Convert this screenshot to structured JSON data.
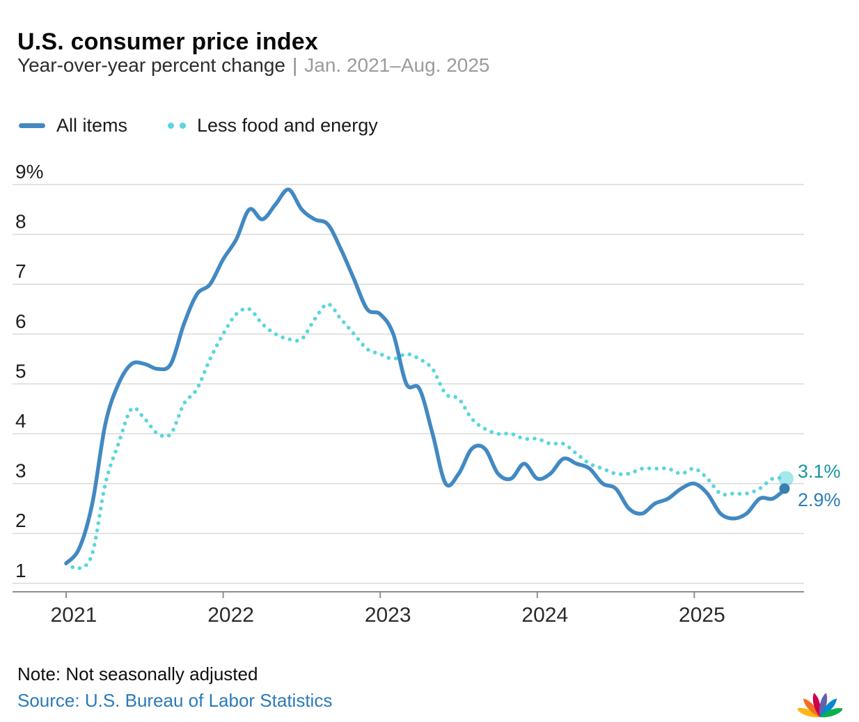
{
  "header": {
    "title": "U.S. consumer price index",
    "subtitle": "Year-over-year percent change",
    "divider": "|",
    "date_range": "Jan. 2021–Aug. 2025"
  },
  "legend": [
    {
      "label": "All items",
      "color": "#4289c2",
      "style": "solid"
    },
    {
      "label": "Less food and energy",
      "color": "#5ad6dc",
      "style": "dotted"
    }
  ],
  "chart_data": {
    "type": "line",
    "title": "U.S. consumer price index",
    "ylabel": "Year-over-year percent change (%)",
    "x_interval": "month",
    "x_start": "2021-01",
    "x_end": "2025-08",
    "x_tick_labels": [
      "2021",
      "2022",
      "2023",
      "2024",
      "2025"
    ],
    "y_ticks": [
      "9%",
      "8",
      "7",
      "6",
      "5",
      "4",
      "3",
      "2",
      "1"
    ],
    "ylim": [
      1,
      9
    ],
    "grid": true,
    "legend_position": "top-left",
    "series": [
      {
        "name": "All items",
        "color": "#4289c2",
        "style": "solid",
        "end_label": "2.9%",
        "end_label_color": "#2d7cb5",
        "end_dot_color": "#3a7fb0",
        "values": [
          1.4,
          1.7,
          2.6,
          4.2,
          5.0,
          5.4,
          5.4,
          5.3,
          5.4,
          6.2,
          6.8,
          7.0,
          7.5,
          7.9,
          8.5,
          8.3,
          8.6,
          8.9,
          8.5,
          8.3,
          8.2,
          7.7,
          7.1,
          6.5,
          6.4,
          6.0,
          5.0,
          4.9,
          4.0,
          3.0,
          3.2,
          3.7,
          3.7,
          3.2,
          3.1,
          3.4,
          3.1,
          3.2,
          3.5,
          3.4,
          3.3,
          3.0,
          2.9,
          2.5,
          2.4,
          2.6,
          2.7,
          2.9,
          3.0,
          2.8,
          2.4,
          2.3,
          2.4,
          2.7,
          2.7,
          2.9
        ]
      },
      {
        "name": "Less food and energy",
        "color": "#5ad6dc",
        "style": "dotted",
        "end_label": "3.1%",
        "end_label_color": "#18959e",
        "end_dot_color": "#5ad6dc",
        "values": [
          1.4,
          1.3,
          1.6,
          3.0,
          3.8,
          4.5,
          4.3,
          4.0,
          4.0,
          4.6,
          4.9,
          5.5,
          6.0,
          6.4,
          6.5,
          6.2,
          6.0,
          5.9,
          5.9,
          6.3,
          6.6,
          6.3,
          6.0,
          5.7,
          5.6,
          5.5,
          5.6,
          5.5,
          5.3,
          4.8,
          4.7,
          4.3,
          4.1,
          4.0,
          4.0,
          3.9,
          3.9,
          3.8,
          3.8,
          3.6,
          3.4,
          3.3,
          3.2,
          3.2,
          3.3,
          3.3,
          3.3,
          3.2,
          3.3,
          3.1,
          2.8,
          2.8,
          2.8,
          2.9,
          3.1,
          3.1
        ]
      }
    ]
  },
  "footer": {
    "note": "Note: Not seasonally adjusted",
    "source": "Source: U.S. Bureau of Labor Statistics"
  },
  "logo": {
    "name": "NBC peacock",
    "colors": [
      "#FCB711",
      "#F37021",
      "#CC004C",
      "#6460AA",
      "#0089D0",
      "#0DB14B"
    ]
  }
}
